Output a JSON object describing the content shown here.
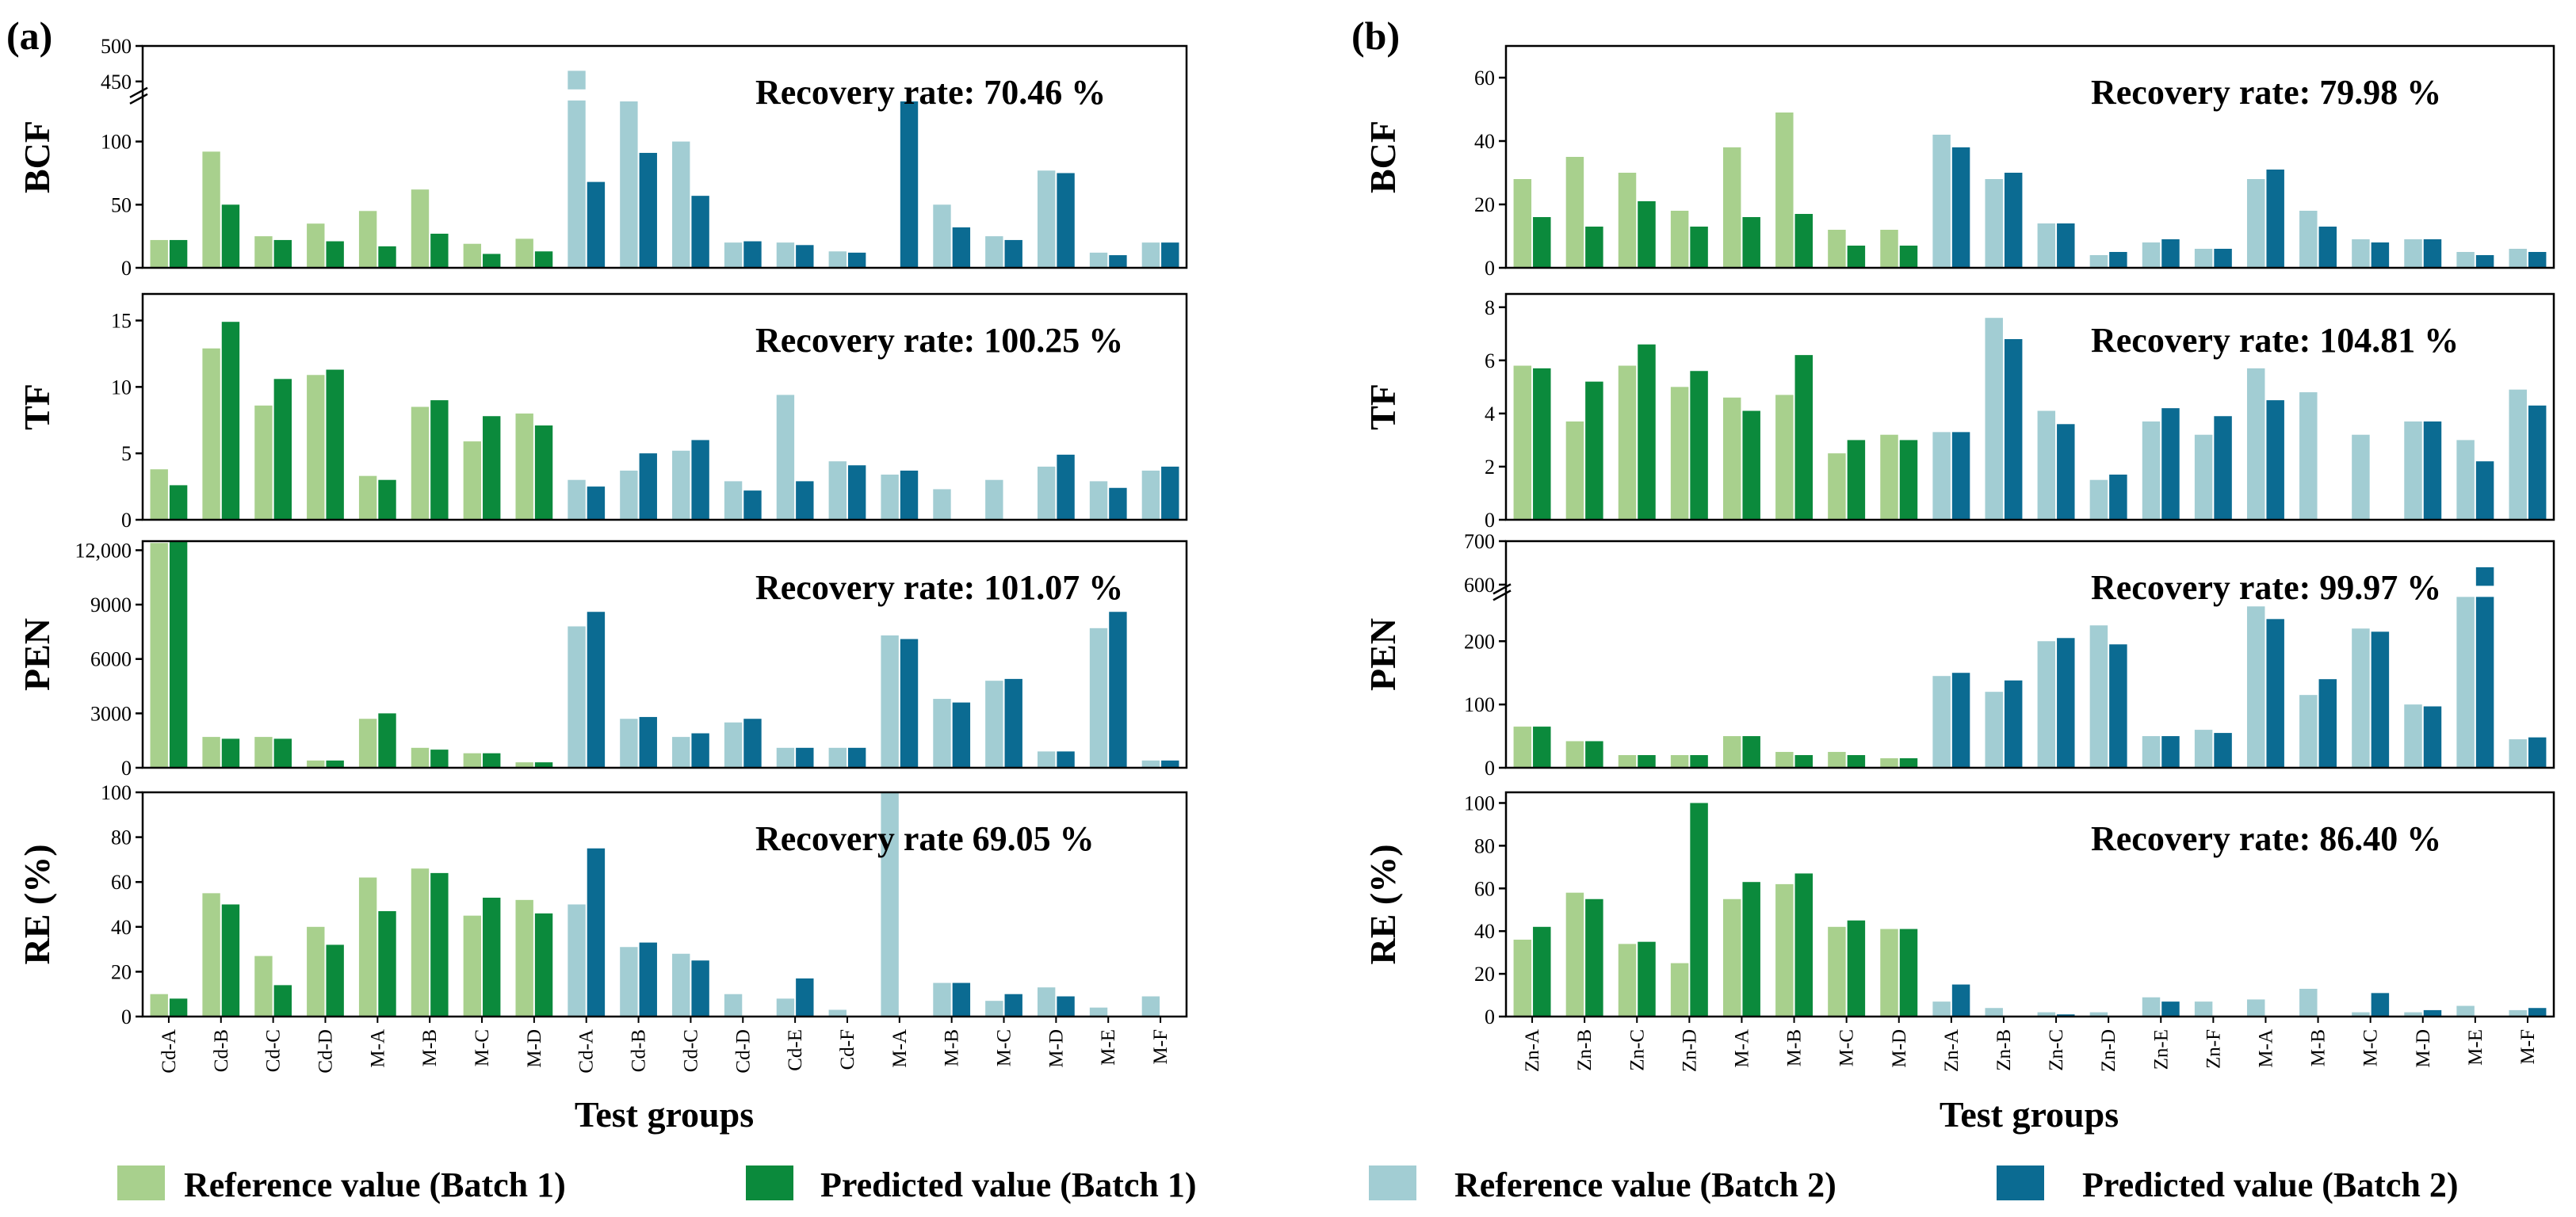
{
  "colors": {
    "ref1": "#a8d08d",
    "pred1": "#0b8a3c",
    "ref2": "#a2cdd3",
    "pred2": "#0b6b92"
  },
  "chart_data": [
    {
      "type": "bar",
      "label": "(a)",
      "xlabel": "Test groups",
      "categories": [
        "Cd-A",
        "Cd-B",
        "Cd-C",
        "Cd-D",
        "M-A",
        "M-B",
        "M-C",
        "M-D",
        "Cd-A",
        "Cd-B",
        "Cd-C",
        "Cd-D",
        "Cd-E",
        "Cd-F",
        "M-A",
        "M-B",
        "M-C",
        "M-D",
        "M-E",
        "M-F"
      ],
      "batches": [
        "Batch 1",
        "Batch 1",
        "Batch 1",
        "Batch 1",
        "Batch 1",
        "Batch 1",
        "Batch 1",
        "Batch 1",
        "Batch 2",
        "Batch 2",
        "Batch 2",
        "Batch 2",
        "Batch 2",
        "Batch 2",
        "Batch 2",
        "Batch 2",
        "Batch 2",
        "Batch 2",
        "Batch 2",
        "Batch 2"
      ],
      "subplots": [
        {
          "id": "a-bcf",
          "ylabel": "BCF",
          "recovery": "Recovery rate: 70.46 %",
          "ylim": [
            0,
            500
          ],
          "axis_break": [
            130,
            425
          ],
          "ticks": [
            "0",
            "50",
            "100",
            "450",
            "500"
          ],
          "reference": [
            22,
            92,
            25,
            35,
            45,
            62,
            19,
            23,
            465,
            145,
            100,
            20,
            20,
            13,
            null,
            50,
            25,
            77,
            12,
            20
          ],
          "predicted": [
            22,
            50,
            22,
            21,
            17,
            27,
            11,
            13,
            68,
            91,
            57,
            21,
            18,
            12,
            145,
            32,
            22,
            75,
            10,
            20
          ]
        },
        {
          "id": "a-tf",
          "ylabel": "TF",
          "recovery": "Recovery rate: 100.25 %",
          "ylim": [
            0,
            17
          ],
          "ticks": [
            "0",
            "5",
            "10",
            "15"
          ],
          "reference": [
            3.8,
            12.9,
            8.6,
            10.9,
            3.3,
            8.5,
            5.9,
            8.0,
            3.0,
            3.7,
            5.2,
            2.9,
            9.4,
            4.4,
            3.4,
            2.3,
            3.0,
            4.0,
            2.9,
            3.7
          ],
          "predicted": [
            2.6,
            14.9,
            10.6,
            11.3,
            3.0,
            9.0,
            7.8,
            7.1,
            2.5,
            5.0,
            6.0,
            2.2,
            2.9,
            4.1,
            3.7,
            null,
            null,
            4.9,
            2.4,
            4.0
          ]
        },
        {
          "id": "a-pen",
          "ylabel": "PEN",
          "recovery": "Recovery rate: 101.07 %",
          "ylim": [
            0,
            12500
          ],
          "ticks": [
            "0",
            "3000",
            "6000",
            "9000",
            "12,000"
          ],
          "reference": [
            12400,
            1700,
            1700,
            400,
            2700,
            1100,
            800,
            300,
            7800,
            2700,
            1700,
            2500,
            1100,
            1100,
            7300,
            3800,
            4800,
            900,
            7700,
            400
          ],
          "predicted": [
            12600,
            1600,
            1600,
            400,
            3000,
            1000,
            800,
            300,
            8600,
            2800,
            1900,
            2700,
            1100,
            1100,
            7100,
            3600,
            4900,
            900,
            8600,
            400
          ]
        },
        {
          "id": "a-re",
          "ylabel": "RE (%)",
          "recovery": "Recovery rate  69.05 %",
          "ylim": [
            0,
            100
          ],
          "ticks": [
            "0",
            "20",
            "40",
            "60",
            "80",
            "100"
          ],
          "reference": [
            10,
            55,
            27,
            40,
            62,
            66,
            45,
            52,
            50,
            31,
            28,
            10,
            8,
            3,
            100,
            15,
            7,
            13,
            4,
            9
          ],
          "predicted": [
            8,
            50,
            14,
            32,
            47,
            64,
            53,
            46,
            75,
            33,
            25,
            null,
            17,
            null,
            null,
            15,
            10,
            9,
            null,
            null
          ]
        }
      ]
    },
    {
      "type": "bar",
      "label": "(b)",
      "xlabel": "Test groups",
      "categories": [
        "Zn-A",
        "Zn-B",
        "Zn-C",
        "Zn-D",
        "M-A",
        "M-B",
        "M-C",
        "M-D",
        "Zn-A",
        "Zn-B",
        "Zn-C",
        "Zn-D",
        "Zn-E",
        "Zn-F",
        "M-A",
        "M-B",
        "M-C",
        "M-D",
        "M-E",
        "M-F"
      ],
      "batches": [
        "Batch 1",
        "Batch 1",
        "Batch 1",
        "Batch 1",
        "Batch 1",
        "Batch 1",
        "Batch 1",
        "Batch 1",
        "Batch 2",
        "Batch 2",
        "Batch 2",
        "Batch 2",
        "Batch 2",
        "Batch 2",
        "Batch 2",
        "Batch 2",
        "Batch 2",
        "Batch 2",
        "Batch 2",
        "Batch 2"
      ],
      "subplots": [
        {
          "id": "b-bcf",
          "ylabel": "BCF",
          "recovery": "Recovery rate: 79.98 %",
          "ylim": [
            0,
            70
          ],
          "ticks": [
            "0",
            "20",
            "40",
            "60"
          ],
          "reference": [
            28,
            35,
            30,
            18,
            38,
            49,
            12,
            12,
            42,
            28,
            14,
            4,
            8,
            6,
            28,
            18,
            9,
            9,
            5,
            6
          ],
          "predicted": [
            16,
            13,
            21,
            13,
            16,
            17,
            7,
            7,
            38,
            30,
            14,
            5,
            9,
            6,
            31,
            13,
            8,
            9,
            4,
            5
          ]
        },
        {
          "id": "b-tf",
          "ylabel": "TF",
          "recovery": "Recovery rate: 104.81 %",
          "ylim": [
            0,
            8.5
          ],
          "ticks": [
            "0",
            "2",
            "4",
            "6",
            "8"
          ],
          "reference": [
            5.8,
            3.7,
            5.8,
            5.0,
            4.6,
            4.7,
            2.5,
            3.2,
            3.3,
            7.6,
            4.1,
            1.5,
            3.7,
            3.2,
            5.7,
            4.8,
            3.2,
            3.7,
            3.0,
            4.9
          ],
          "predicted": [
            5.7,
            5.2,
            6.6,
            5.6,
            4.1,
            6.2,
            3.0,
            3.0,
            3.3,
            6.8,
            3.6,
            1.7,
            4.2,
            3.9,
            4.5,
            null,
            null,
            3.7,
            2.2,
            4.3
          ]
        },
        {
          "id": "b-pen",
          "ylabel": "PEN",
          "recovery": "Recovery rate: 99.97 %",
          "ylim": [
            0,
            700
          ],
          "axis_break": [
            265,
            575
          ],
          "ticks": [
            "0",
            "100",
            "200",
            "600",
            "700"
          ],
          "reference": [
            65,
            42,
            20,
            20,
            50,
            25,
            25,
            15,
            145,
            120,
            200,
            225,
            50,
            60,
            255,
            115,
            220,
            100,
            590,
            45
          ],
          "predicted": [
            65,
            42,
            20,
            20,
            50,
            20,
            20,
            15,
            150,
            138,
            205,
            195,
            50,
            55,
            235,
            140,
            215,
            97,
            640,
            48
          ]
        },
        {
          "id": "b-re",
          "ylabel": "RE (%)",
          "recovery": "Recovery rate: 86.40 %",
          "ylim": [
            0,
            105
          ],
          "ticks": [
            "0",
            "20",
            "40",
            "60",
            "80",
            "100"
          ],
          "reference": [
            36,
            58,
            34,
            25,
            55,
            62,
            42,
            41,
            7,
            4,
            2,
            2,
            9,
            7,
            8,
            13,
            2,
            2,
            5,
            3
          ],
          "predicted": [
            42,
            55,
            35,
            100,
            63,
            67,
            45,
            41,
            15,
            null,
            1,
            null,
            7,
            null,
            null,
            null,
            11,
            3,
            null,
            4
          ]
        }
      ]
    }
  ],
  "legend": [
    {
      "label": "Reference value (Batch 1)",
      "color": "#a8d08d"
    },
    {
      "label": "Predicted value (Batch 1)",
      "color": "#0b8a3c"
    },
    {
      "label": "Reference value (Batch 2)",
      "color": "#a2cdd3"
    },
    {
      "label": "Predicted value (Batch 2)",
      "color": "#0b6b92"
    }
  ]
}
